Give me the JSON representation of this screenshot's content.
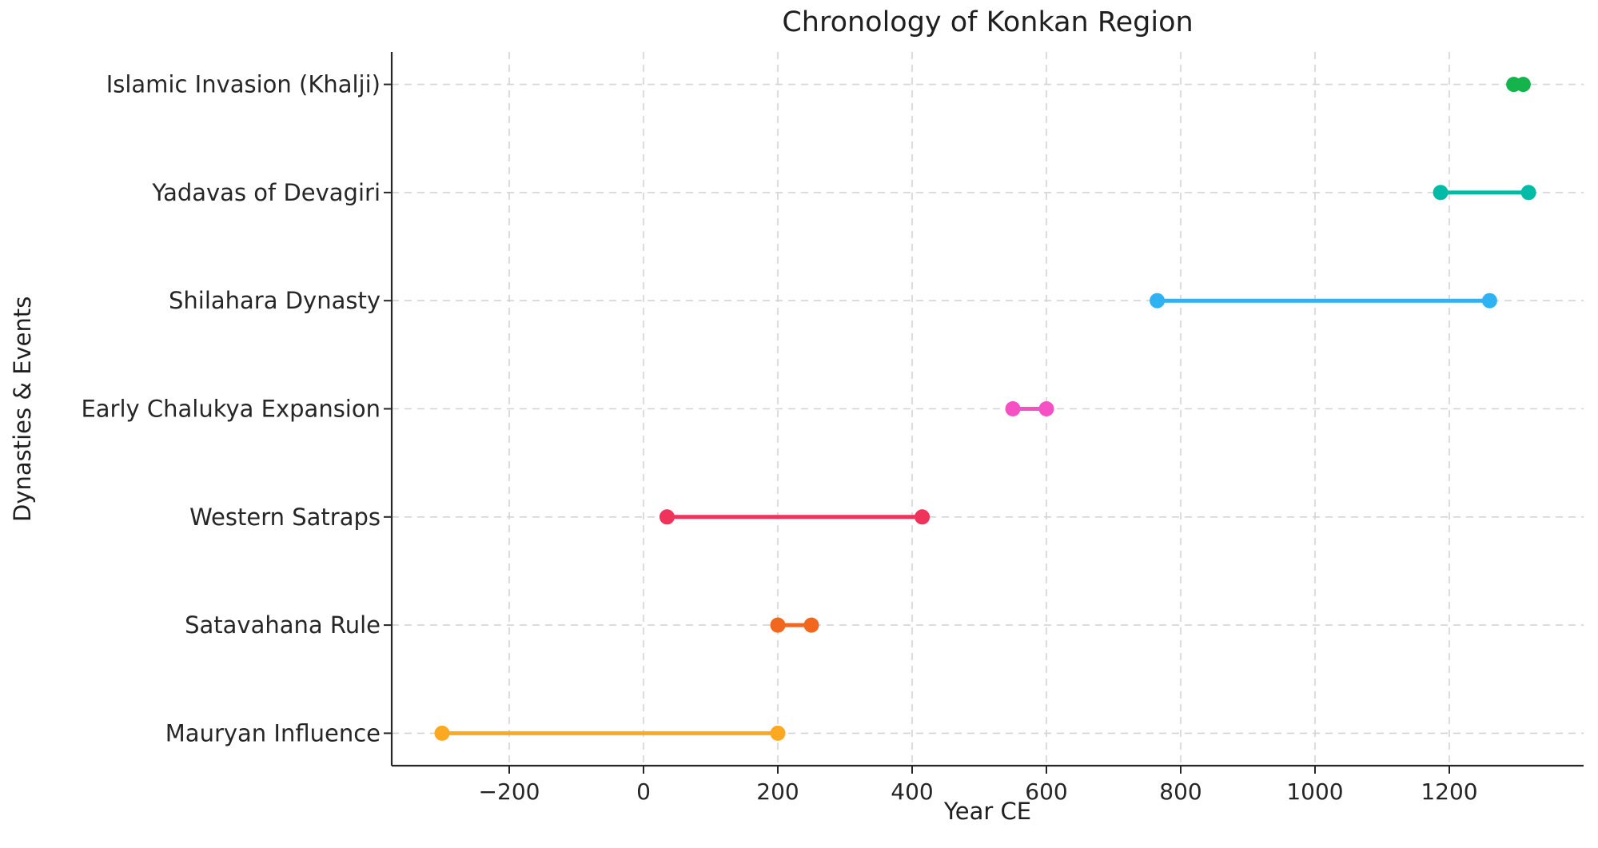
{
  "figure": {
    "title": "Chronology of Konkan Region",
    "xlabel": "Year CE",
    "ylabel": "Dynasties & Events"
  },
  "chart_data": {
    "type": "line",
    "subtype": "horizontal-timeline-dumbbell",
    "title": "Chronology of Konkan Region",
    "xlabel": "Year CE",
    "ylabel": "Dynasties & Events",
    "xlim": [
      -375,
      1400
    ],
    "grid": true,
    "gridline_style": "dashed",
    "legend": "none",
    "xticks": {
      "values": [
        -200,
        0,
        200,
        400,
        600,
        800,
        1000,
        1200
      ],
      "labels": [
        "−200",
        "0",
        "200",
        "400",
        "600",
        "800",
        "1000",
        "1200"
      ]
    },
    "rows": [
      {
        "label": "Islamic Invasion (Khalji)",
        "start": 1296,
        "end": 1310,
        "color": "#14b34c"
      },
      {
        "label": "Yadavas of Devagiri",
        "start": 1187,
        "end": 1318,
        "color": "#00bca6"
      },
      {
        "label": "Shilahara Dynasty",
        "start": 765,
        "end": 1260,
        "color": "#2eb2f4"
      },
      {
        "label": "Early Chalukya Expansion",
        "start": 550,
        "end": 600,
        "color": "#f551c5"
      },
      {
        "label": "Western Satraps",
        "start": 35,
        "end": 415,
        "color": "#f0335b"
      },
      {
        "label": "Satavahana Rule",
        "start": 200,
        "end": 250,
        "color": "#f2661d"
      },
      {
        "label": "Mauryan Influence",
        "start": -300,
        "end": 200,
        "color": "#fca820"
      }
    ],
    "colors": {
      "spine": "#262626",
      "tick_label": "#262626",
      "grid": "#d4d4d4",
      "background": "#ffffff"
    }
  }
}
